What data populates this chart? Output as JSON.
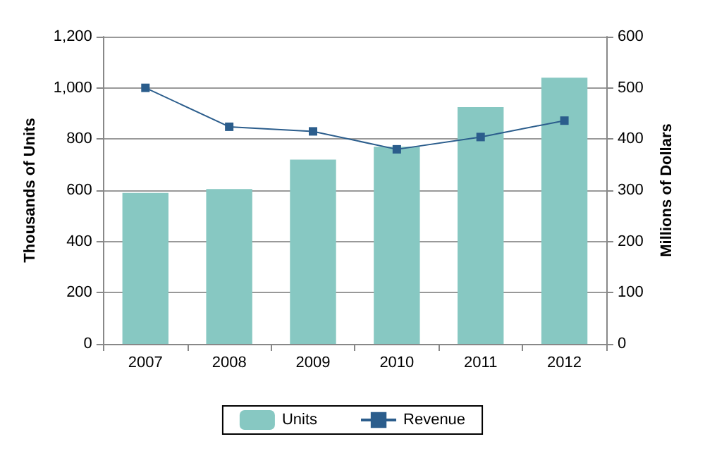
{
  "chart_data": {
    "type": "bar",
    "categories": [
      "2007",
      "2008",
      "2009",
      "2010",
      "2011",
      "2012"
    ],
    "series": [
      {
        "name": "Units",
        "color": "#87c8c2",
        "values": [
          590,
          605,
          720,
          770,
          925,
          1040
        ]
      },
      {
        "name": "Revenue",
        "type": "line",
        "axis": "y2",
        "color": "#2b5d8c",
        "marker": "square",
        "values": [
          500,
          424,
          415,
          380,
          404,
          436
        ]
      }
    ],
    "ylabel": "Thousands of Units",
    "y2label": "Millions of Dollars",
    "ylim": [
      0,
      1200
    ],
    "yticks": [
      0,
      200,
      400,
      600,
      800,
      {
        "value": 1000,
        "label": "1,000"
      },
      {
        "value": 1200,
        "label": "1,200"
      }
    ],
    "y2lim": [
      0,
      600
    ],
    "y2ticks": [
      0,
      100,
      200,
      300,
      400,
      500,
      600
    ],
    "grid": "y",
    "legend": "bottom"
  }
}
